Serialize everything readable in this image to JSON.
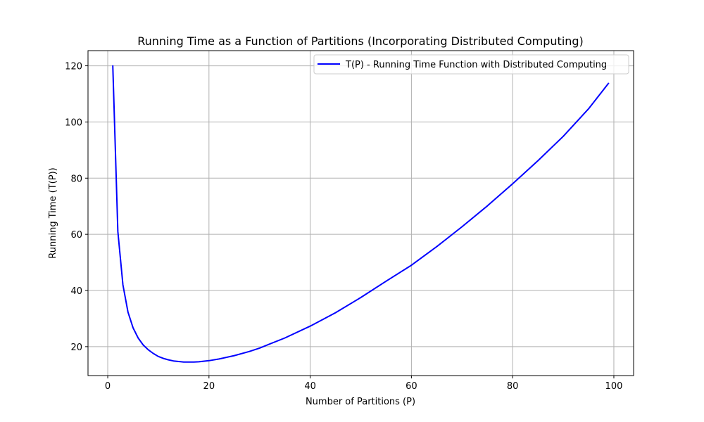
{
  "chart_data": {
    "type": "line",
    "title": "Running Time as a Function of Partitions (Incorporating Distributed Computing)",
    "xlabel": "Number of Partitions (P)",
    "ylabel": "Running Time (T(P))",
    "xlim": [
      -3.9,
      103.9
    ],
    "ylim": [
      9.7,
      125.4
    ],
    "xticks": [
      0,
      20,
      40,
      60,
      80,
      100
    ],
    "yticks": [
      20,
      40,
      60,
      80,
      100,
      120
    ],
    "grid": true,
    "legend_position": "top-right",
    "series": [
      {
        "name": "T(P) - Running Time Function with Distributed Computing",
        "color": "#0000ff",
        "x": [
          1,
          2,
          3,
          4,
          5,
          6,
          7,
          8,
          9,
          10,
          11,
          12,
          13,
          14,
          15,
          16,
          17,
          18,
          20,
          22,
          25,
          28,
          30,
          35,
          40,
          45,
          50,
          55,
          60,
          65,
          70,
          75,
          80,
          85,
          90,
          95,
          99
        ],
        "y": [
          120.2,
          61.0,
          42.0,
          32.3,
          26.7,
          23.1,
          20.6,
          18.9,
          17.6,
          16.5,
          15.8,
          15.3,
          14.9,
          14.7,
          14.5,
          14.5,
          14.5,
          14.6,
          15.0,
          15.6,
          16.8,
          18.3,
          19.5,
          23.1,
          27.3,
          32.1,
          37.5,
          43.3,
          49.0,
          55.6,
          62.7,
          70.1,
          78.0,
          86.2,
          94.9,
          104.7,
          113.9
        ]
      }
    ]
  }
}
